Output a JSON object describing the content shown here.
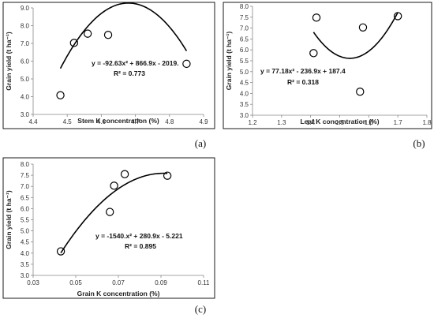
{
  "chart_data": [
    {
      "id": "a",
      "type": "scatter",
      "panel_label": "(a)",
      "xlabel": "Stem K concentration (%)",
      "ylabel": "Grain yield (t ha⁻¹)",
      "xlim": [
        4.4,
        4.9
      ],
      "ylim": [
        3.0,
        9.0
      ],
      "xticks": [
        4.4,
        4.5,
        4.6,
        4.7,
        4.8,
        4.9
      ],
      "xtick_labels": [
        "4.4",
        "4.5",
        "4.6",
        "4.7",
        "4.8",
        "4.9"
      ],
      "yticks": [
        3.0,
        4.0,
        5.0,
        6.0,
        7.0,
        8.0,
        9.0
      ],
      "ytick_labels": [
        "3.0",
        "4.0",
        "5.0",
        "6.0",
        "7.0",
        "8.0",
        "9.0"
      ],
      "points": [
        {
          "x": 4.48,
          "y": 4.08
        },
        {
          "x": 4.52,
          "y": 7.03
        },
        {
          "x": 4.56,
          "y": 7.55
        },
        {
          "x": 4.62,
          "y": 7.48
        },
        {
          "x": 4.85,
          "y": 5.85
        }
      ],
      "fit": {
        "coef": [
          -92.63,
          866.9,
          -2019
        ],
        "x_range": [
          4.48,
          4.85
        ]
      },
      "equation": "y = -92.63x² + 866.9x - 2019.",
      "r2": "R² = 0.773",
      "grid": false
    },
    {
      "id": "b",
      "type": "scatter",
      "panel_label": "(b)",
      "xlabel": "Leaf K concentration (%)",
      "ylabel": "Grain yield (t ha⁻¹)",
      "xlim": [
        1.2,
        1.8
      ],
      "ylim": [
        3.0,
        8.0
      ],
      "xticks": [
        1.2,
        1.3,
        1.4,
        1.5,
        1.6,
        1.7,
        1.8
      ],
      "xtick_labels": [
        "1.2",
        "1.3",
        "1.4",
        "1.5",
        "1.6",
        "1.7",
        "1.8"
      ],
      "yticks": [
        3.0,
        3.5,
        4.0,
        4.5,
        5.0,
        5.5,
        6.0,
        6.5,
        7.0,
        7.5,
        8.0
      ],
      "ytick_labels": [
        "3.0",
        "3.5",
        "4.0",
        "4.5",
        "5.0",
        "5.5",
        "6.0",
        "6.5",
        "7.0",
        "7.5",
        "8.0"
      ],
      "points": [
        {
          "x": 1.41,
          "y": 5.85
        },
        {
          "x": 1.42,
          "y": 7.48
        },
        {
          "x": 1.57,
          "y": 4.08
        },
        {
          "x": 1.58,
          "y": 7.03
        },
        {
          "x": 1.7,
          "y": 7.55
        }
      ],
      "fit": {
        "coef": [
          77.18,
          -236.9,
          187.4
        ],
        "x_range": [
          1.41,
          1.7
        ]
      },
      "equation": "y = 77.18x² - 236.9x + 187.4",
      "r2": "R² = 0.318",
      "grid": false
    },
    {
      "id": "c",
      "type": "scatter",
      "panel_label": "(c)",
      "xlabel": "Grain K concentration (%)",
      "ylabel": "Grain yield (t ha⁻¹)",
      "xlim": [
        0.03,
        0.11
      ],
      "ylim": [
        3.0,
        8.0
      ],
      "xticks": [
        0.03,
        0.05,
        0.07,
        0.09,
        0.11
      ],
      "xtick_labels": [
        "0.03",
        "0.05",
        "0.07",
        "0.09",
        "0.11"
      ],
      "yticks": [
        3.0,
        3.5,
        4.0,
        4.5,
        5.0,
        5.5,
        6.0,
        6.5,
        7.0,
        7.5,
        8.0
      ],
      "ytick_labels": [
        "3.0",
        "3.5",
        "4.0",
        "4.5",
        "5.0",
        "5.5",
        "6.0",
        "6.5",
        "7.0",
        "7.5",
        "8.0"
      ],
      "points": [
        {
          "x": 0.043,
          "y": 4.08
        },
        {
          "x": 0.066,
          "y": 5.85
        },
        {
          "x": 0.068,
          "y": 7.03
        },
        {
          "x": 0.073,
          "y": 7.55
        },
        {
          "x": 0.093,
          "y": 7.48
        }
      ],
      "fit": {
        "coef": [
          -1540,
          280.9,
          -5.221
        ],
        "x_range": [
          0.043,
          0.093
        ]
      },
      "equation": "y = -1540.x² + 280.9x - 5.221",
      "r2": "R² = 0.895",
      "grid": false
    }
  ]
}
